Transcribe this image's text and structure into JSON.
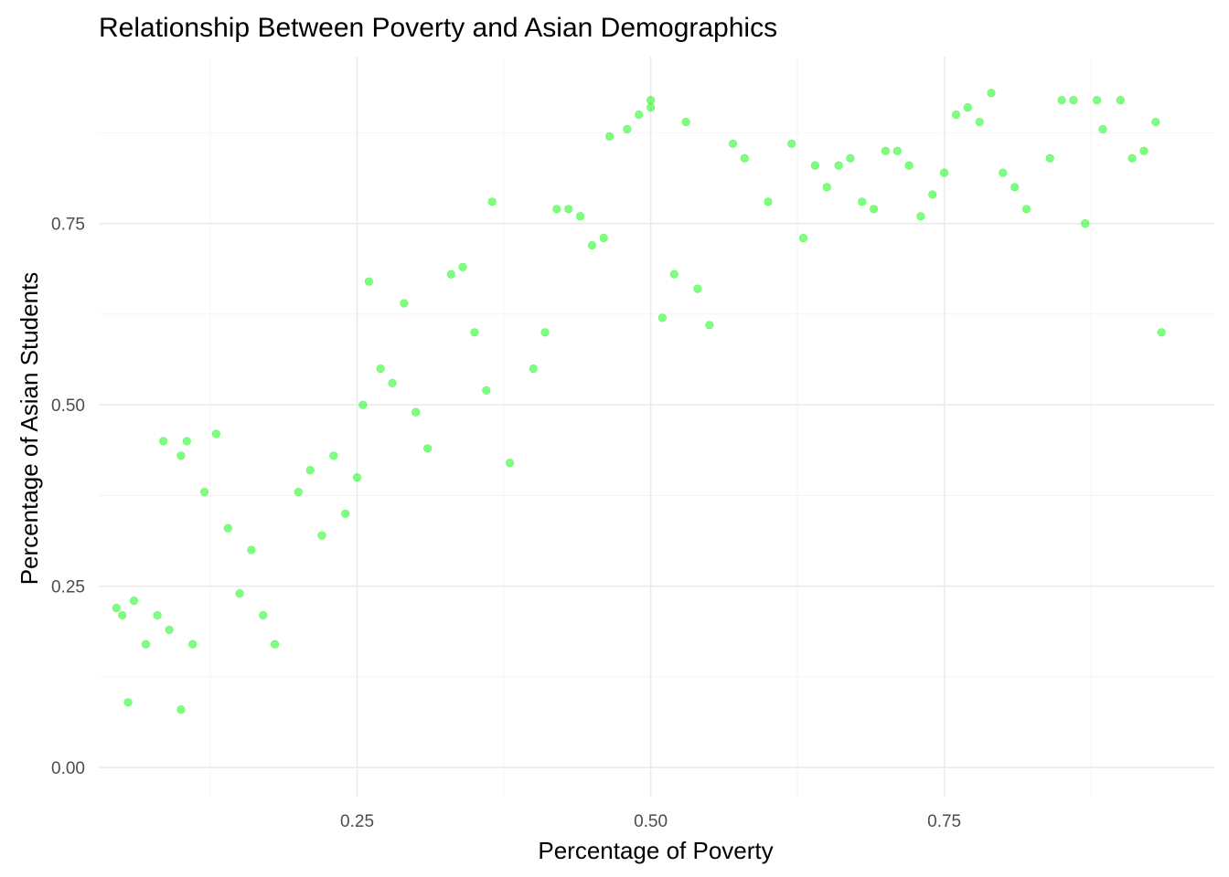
{
  "chart_data": {
    "type": "scatter",
    "title": "Relationship Between Poverty and Asian Demographics",
    "xlabel": "Percentage of Poverty",
    "ylabel": "Percentage of Asian Students",
    "xlim": [
      0.03,
      0.98
    ],
    "ylim": [
      -0.04,
      0.98
    ],
    "x_ticks": [
      0.25,
      0.5,
      0.75
    ],
    "x_tick_labels": [
      "0.25",
      "0.50",
      "0.75"
    ],
    "y_ticks": [
      0.0,
      0.25,
      0.5,
      0.75
    ],
    "y_tick_labels": [
      "0.00",
      "0.25",
      "0.50",
      "0.75"
    ],
    "grid": true,
    "point_color": "#00ff00",
    "series": [
      {
        "points": [
          [
            0.045,
            0.22
          ],
          [
            0.05,
            0.21
          ],
          [
            0.055,
            0.09
          ],
          [
            0.06,
            0.23
          ],
          [
            0.07,
            0.17
          ],
          [
            0.08,
            0.21
          ],
          [
            0.085,
            0.45
          ],
          [
            0.09,
            0.19
          ],
          [
            0.1,
            0.08
          ],
          [
            0.1,
            0.43
          ],
          [
            0.105,
            0.45
          ],
          [
            0.11,
            0.17
          ],
          [
            0.12,
            0.38
          ],
          [
            0.13,
            0.46
          ],
          [
            0.14,
            0.33
          ],
          [
            0.15,
            0.24
          ],
          [
            0.16,
            0.3
          ],
          [
            0.17,
            0.21
          ],
          [
            0.18,
            0.17
          ],
          [
            0.2,
            0.38
          ],
          [
            0.21,
            0.41
          ],
          [
            0.22,
            0.32
          ],
          [
            0.23,
            0.43
          ],
          [
            0.24,
            0.35
          ],
          [
            0.25,
            0.4
          ],
          [
            0.255,
            0.5
          ],
          [
            0.26,
            0.67
          ],
          [
            0.27,
            0.55
          ],
          [
            0.28,
            0.53
          ],
          [
            0.29,
            0.64
          ],
          [
            0.3,
            0.49
          ],
          [
            0.31,
            0.44
          ],
          [
            0.33,
            0.68
          ],
          [
            0.34,
            0.69
          ],
          [
            0.35,
            0.6
          ],
          [
            0.36,
            0.52
          ],
          [
            0.365,
            0.78
          ],
          [
            0.38,
            0.42
          ],
          [
            0.4,
            0.55
          ],
          [
            0.41,
            0.6
          ],
          [
            0.42,
            0.77
          ],
          [
            0.43,
            0.77
          ],
          [
            0.44,
            0.76
          ],
          [
            0.45,
            0.72
          ],
          [
            0.46,
            0.73
          ],
          [
            0.465,
            0.87
          ],
          [
            0.48,
            0.88
          ],
          [
            0.49,
            0.9
          ],
          [
            0.5,
            0.92
          ],
          [
            0.5,
            0.91
          ],
          [
            0.51,
            0.62
          ],
          [
            0.52,
            0.68
          ],
          [
            0.53,
            0.89
          ],
          [
            0.54,
            0.66
          ],
          [
            0.55,
            0.61
          ],
          [
            0.57,
            0.86
          ],
          [
            0.58,
            0.84
          ],
          [
            0.6,
            0.78
          ],
          [
            0.62,
            0.86
          ],
          [
            0.63,
            0.73
          ],
          [
            0.64,
            0.83
          ],
          [
            0.65,
            0.8
          ],
          [
            0.66,
            0.83
          ],
          [
            0.67,
            0.84
          ],
          [
            0.68,
            0.78
          ],
          [
            0.69,
            0.77
          ],
          [
            0.7,
            0.85
          ],
          [
            0.71,
            0.85
          ],
          [
            0.72,
            0.83
          ],
          [
            0.73,
            0.76
          ],
          [
            0.74,
            0.79
          ],
          [
            0.75,
            0.82
          ],
          [
            0.76,
            0.9
          ],
          [
            0.77,
            0.91
          ],
          [
            0.78,
            0.89
          ],
          [
            0.79,
            0.93
          ],
          [
            0.8,
            0.82
          ],
          [
            0.81,
            0.8
          ],
          [
            0.82,
            0.77
          ],
          [
            0.84,
            0.84
          ],
          [
            0.85,
            0.92
          ],
          [
            0.86,
            0.92
          ],
          [
            0.87,
            0.75
          ],
          [
            0.88,
            0.92
          ],
          [
            0.885,
            0.88
          ],
          [
            0.9,
            0.92
          ],
          [
            0.91,
            0.84
          ],
          [
            0.92,
            0.85
          ],
          [
            0.93,
            0.89
          ],
          [
            0.935,
            0.6
          ]
        ]
      }
    ]
  }
}
